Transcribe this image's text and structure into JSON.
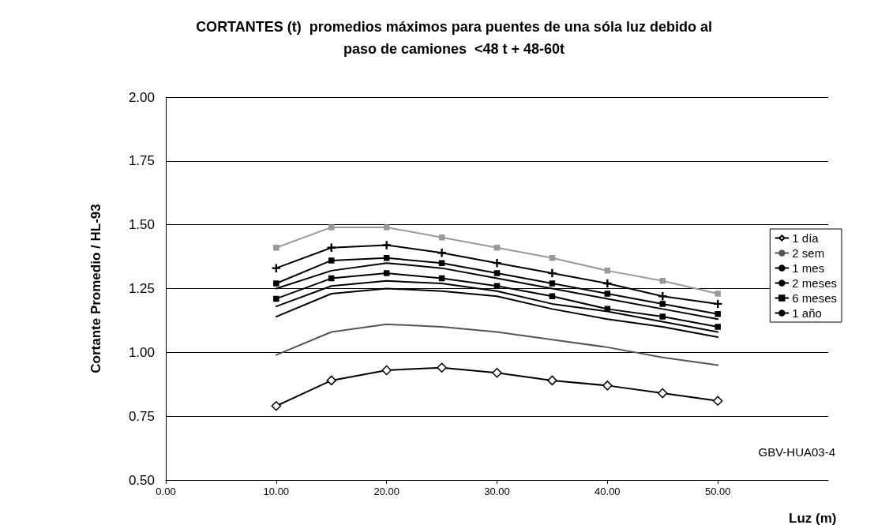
{
  "chart_data": {
    "type": "line",
    "title": "CORTANTES (t)  promedios máximos para puentes de una sóla luz debido al\npaso de camiones  <48 t + 48-60t",
    "xlabel": "Luz (m)",
    "ylabel": "Cortante Promedio / HL-93",
    "x": [
      10,
      15,
      20,
      25,
      30,
      35,
      40,
      45,
      50
    ],
    "series": [
      {
        "name": "1 día",
        "color": "#000000",
        "marker": "diamond",
        "values": [
          0.79,
          0.89,
          0.93,
          0.94,
          0.92,
          0.89,
          0.87,
          0.84,
          0.81
        ]
      },
      {
        "name": "2 sem",
        "color": "#555555",
        "marker": "none",
        "values": [
          0.99,
          1.08,
          1.11,
          1.1,
          1.08,
          1.05,
          1.02,
          0.98,
          0.95
        ]
      },
      {
        "name": "1 mes",
        "color": "#000000",
        "marker": "none",
        "values": [
          1.14,
          1.23,
          1.25,
          1.24,
          1.22,
          1.17,
          1.13,
          1.1,
          1.06
        ]
      },
      {
        "name": "2 meses",
        "color": "#000000",
        "marker": "none",
        "values": [
          1.18,
          1.26,
          1.28,
          1.27,
          1.24,
          1.19,
          1.16,
          1.12,
          1.08
        ]
      },
      {
        "name": "6 meses",
        "color": "#000000",
        "marker": "square",
        "values": [
          1.21,
          1.29,
          1.31,
          1.29,
          1.26,
          1.22,
          1.17,
          1.14,
          1.1
        ]
      },
      {
        "name": "1 año",
        "color": "#000000",
        "marker": "none",
        "values": [
          1.25,
          1.32,
          1.35,
          1.33,
          1.29,
          1.25,
          1.21,
          1.17,
          1.13
        ]
      },
      {
        "color": "#000000",
        "marker": "square",
        "values": [
          1.27,
          1.36,
          1.37,
          1.35,
          1.31,
          1.27,
          1.23,
          1.19,
          1.15
        ]
      },
      {
        "color": "#000000",
        "marker": "cross",
        "values": [
          1.33,
          1.41,
          1.42,
          1.39,
          1.35,
          1.31,
          1.27,
          1.22,
          1.19
        ]
      },
      {
        "color": "#999999",
        "marker": "square",
        "values": [
          1.41,
          1.49,
          1.49,
          1.45,
          1.41,
          1.37,
          1.32,
          1.28,
          1.23
        ]
      }
    ],
    "xlim": [
      0,
      60
    ],
    "xticks": [
      {
        "value": 0,
        "label": "0.00"
      },
      {
        "value": 10,
        "label": "10.00"
      },
      {
        "value": 20,
        "label": "20.00"
      },
      {
        "value": 30,
        "label": "30.00"
      },
      {
        "value": 40,
        "label": "40.00"
      },
      {
        "value": 50,
        "label": "50.00"
      }
    ],
    "ylim": [
      0.5,
      2
    ],
    "yticks": [
      {
        "value": 0.5,
        "label": "0.50"
      },
      {
        "value": 0.75,
        "label": "0.75"
      },
      {
        "value": 1,
        "label": "1.00"
      },
      {
        "value": 1.25,
        "label": "1.25"
      },
      {
        "value": 1.5,
        "label": "1.50"
      },
      {
        "value": 1.75,
        "label": "1.75"
      },
      {
        "value": 2,
        "label": "2.00"
      }
    ],
    "grid": "y",
    "legend": "right",
    "line_style": "solid",
    "annotations": [
      "GBV-HUA03-4"
    ]
  }
}
